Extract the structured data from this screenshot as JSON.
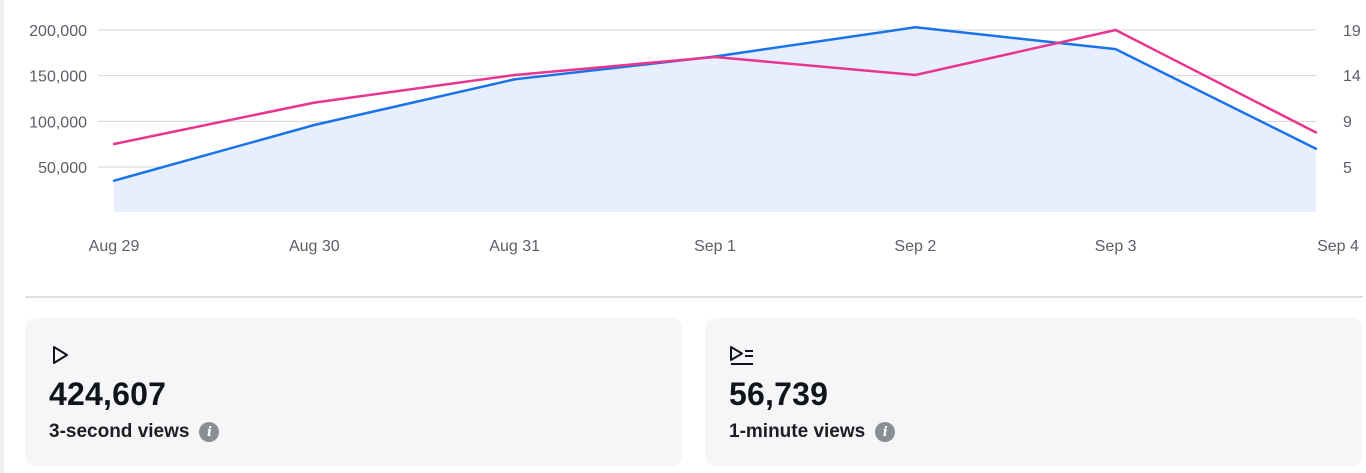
{
  "chart_data": {
    "type": "line",
    "categories": [
      "Aug 29",
      "Aug 30",
      "Aug 31",
      "Sep 1",
      "Sep 2",
      "Sep 3",
      "Sep 4"
    ],
    "series": [
      {
        "axis": "left",
        "style": "area",
        "color": "#1a73e8",
        "fill": "#e7efff",
        "values": [
          35000,
          96000,
          146000,
          171000,
          203000,
          179000,
          70000
        ]
      },
      {
        "axis": "right",
        "style": "line",
        "color": "#e8368f",
        "values": [
          7,
          11,
          14,
          16,
          14,
          19,
          8
        ]
      }
    ],
    "y_left": {
      "ticks": [
        50000,
        100000,
        150000,
        200000
      ],
      "tick_labels": [
        "50,000",
        "100,000",
        "150,000",
        "200,000"
      ]
    },
    "y_right": {
      "ticks": [
        5,
        9,
        14,
        19
      ],
      "tick_labels": [
        "5",
        "9",
        "14",
        "19"
      ]
    },
    "grid": true
  },
  "stats": [
    {
      "icon": "play-icon",
      "value": "424,607",
      "label": "3-second views"
    },
    {
      "icon": "play-list-icon",
      "value": "56,739",
      "label": "1-minute views"
    }
  ],
  "colors": {
    "gridline": "#d3d6da",
    "baseline": "#cdd2d8",
    "info_icon": "#8a8d91"
  }
}
